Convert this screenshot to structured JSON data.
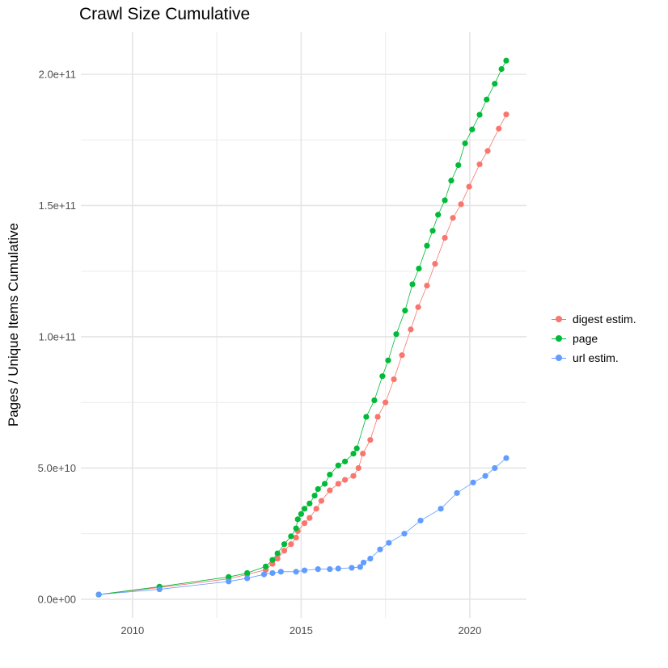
{
  "chart_data": {
    "type": "line",
    "title": "Crawl Size Cumulative",
    "xlabel": "",
    "ylabel": "Pages / Unique Items Cumulative",
    "xlim": [
      2008.47,
      2021.68
    ],
    "ylim": [
      -7100000000.0,
      216000000000.0
    ],
    "x_ticks": [
      2010,
      2015,
      2020
    ],
    "x_tick_labels": [
      "2010",
      "2015",
      "2020"
    ],
    "y_ticks": [
      0,
      50000000000.0,
      100000000000.0,
      150000000000.0,
      200000000000.0
    ],
    "y_tick_labels": [
      "0.0e+00",
      "5.0e+10",
      "1.0e+11",
      "1.5e+11",
      "2.0e+11"
    ],
    "grid": true,
    "legend_position": "right",
    "series": [
      {
        "name": "digest estim.",
        "color": "#F8766D",
        "x": [
          2009.0,
          2010.8,
          2012.85,
          2013.4,
          2013.95,
          2014.15,
          2014.3,
          2014.5,
          2014.7,
          2014.85,
          2014.9,
          2015.1,
          2015.25,
          2015.45,
          2015.6,
          2015.85,
          2016.1,
          2016.3,
          2016.55,
          2016.7,
          2016.83,
          2017.05,
          2017.27,
          2017.5,
          2017.75,
          2017.99,
          2018.25,
          2018.47,
          2018.73,
          2018.97,
          2019.26,
          2019.5,
          2019.74,
          2019.98,
          2020.29,
          2020.53,
          2020.86,
          2021.08
        ],
        "y": [
          1800000000.0,
          4500000000.0,
          7800000000.0,
          9500000000.0,
          11200000000.0,
          13500000000.0,
          15500000000.0,
          18500000000.0,
          21000000000.0,
          23500000000.0,
          26000000000.0,
          29000000000.0,
          31000000000.0,
          34500000000.0,
          37500000000.0,
          41500000000.0,
          44000000000.0,
          45500000000.0,
          47000000000.0,
          50000000000.0,
          55500000000.0,
          60700000000.0,
          69500000000.0,
          75000000000.0,
          83800000000.0,
          93000000000.0,
          102800000000.0,
          111300000000.0,
          119500000000.0,
          127800000000.0,
          137700000000.0,
          145300000000.0,
          150500000000.0,
          157200000000.0,
          165700000000.0,
          170800000000.0,
          179300000000.0,
          184700000000.0
        ]
      },
      {
        "name": "page",
        "color": "#00BA38",
        "x": [
          2009.0,
          2010.8,
          2012.85,
          2013.4,
          2013.95,
          2014.15,
          2014.3,
          2014.5,
          2014.7,
          2014.85,
          2014.9,
          2015.0,
          2015.1,
          2015.25,
          2015.4,
          2015.5,
          2015.7,
          2015.85,
          2016.1,
          2016.3,
          2016.55,
          2016.65,
          2016.93,
          2017.17,
          2017.41,
          2017.58,
          2017.82,
          2018.08,
          2018.3,
          2018.49,
          2018.73,
          2018.9,
          2019.06,
          2019.26,
          2019.45,
          2019.66,
          2019.86,
          2020.07,
          2020.29,
          2020.5,
          2020.74,
          2020.94,
          2021.08
        ],
        "y": [
          1800000000.0,
          4800000000.0,
          8500000000.0,
          10000000000.0,
          12500000000.0,
          15000000000.0,
          17500000000.0,
          21000000000.0,
          24000000000.0,
          27000000000.0,
          30500000000.0,
          32500000000.0,
          34500000000.0,
          36500000000.0,
          39500000000.0,
          42000000000.0,
          44000000000.0,
          47500000000.0,
          51000000000.0,
          52500000000.0,
          55500000000.0,
          57500000000.0,
          69500000000.0,
          75800000000.0,
          85000000000.0,
          91000000000.0,
          101000000000.0,
          110000000000.0,
          120000000000.0,
          126000000000.0,
          134700000000.0,
          140400000000.0,
          146500000000.0,
          152000000000.0,
          159500000000.0,
          165400000000.0,
          173700000000.0,
          179000000000.0,
          184600000000.0,
          190400000000.0,
          196400000000.0,
          202000000000.0,
          205200000000.0
        ]
      },
      {
        "name": "url estim.",
        "color": "#619CFF",
        "x": [
          2009.0,
          2010.8,
          2012.85,
          2013.4,
          2013.9,
          2014.15,
          2014.4,
          2014.85,
          2015.1,
          2015.5,
          2015.85,
          2016.1,
          2016.5,
          2016.75,
          2016.85,
          2017.05,
          2017.34,
          2017.6,
          2018.06,
          2018.54,
          2019.14,
          2019.62,
          2020.1,
          2020.46,
          2020.74,
          2021.08
        ],
        "y": [
          1800000000.0,
          3800000000.0,
          6800000000.0,
          8000000000.0,
          9500000000.0,
          10000000000.0,
          10500000000.0,
          10500000000.0,
          11000000000.0,
          11500000000.0,
          11500000000.0,
          11700000000.0,
          12000000000.0,
          12300000000.0,
          14000000000.0,
          15500000000.0,
          19000000000.0,
          21500000000.0,
          25000000000.0,
          30000000000.0,
          34500000000.0,
          40500000000.0,
          44500000000.0,
          47000000000.0,
          50000000000.0,
          53800000000.0
        ]
      }
    ]
  }
}
